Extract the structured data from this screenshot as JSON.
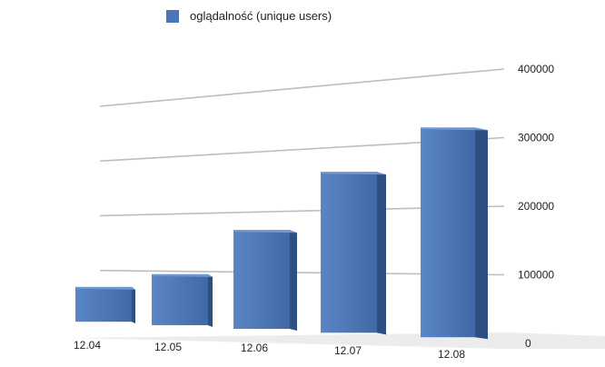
{
  "legend": {
    "label": "oglądalność (unique users)"
  },
  "colors": {
    "bar_front": "#4a76b8",
    "bar_side": "#2e4f82",
    "bar_top": "#6f97d1",
    "grid": "#bdbdbd",
    "text": "#222222"
  },
  "chart_data": {
    "type": "bar",
    "title": "",
    "xlabel": "",
    "ylabel": "",
    "categories": [
      "12.04",
      "12.05",
      "12.06",
      "12.07",
      "12.08"
    ],
    "series": [
      {
        "name": "oglądalność (unique users)",
        "values": [
          70000,
          95000,
          170000,
          260000,
          320000
        ]
      }
    ],
    "ylim": [
      0,
      400000
    ],
    "y_ticks": [
      "0",
      "100000",
      "200000",
      "300000",
      "400000"
    ],
    "grid": true,
    "legend_position": "top"
  }
}
